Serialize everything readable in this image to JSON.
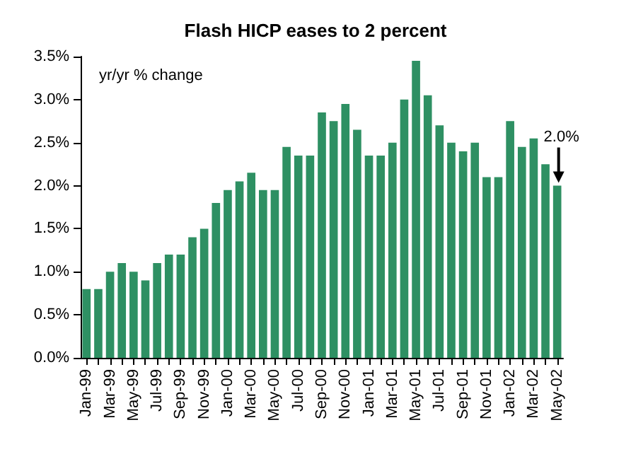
{
  "chart_data": {
    "type": "bar",
    "title": "Flash HICP eases to 2 percent",
    "ylabel": "yr/yr % change",
    "categories": [
      "Jan-99",
      null,
      "Mar-99",
      null,
      "May-99",
      null,
      "Jul-99",
      null,
      "Sep-99",
      null,
      "Nov-99",
      null,
      "Jan-00",
      null,
      "Mar-00",
      null,
      "May-00",
      null,
      "Jul-00",
      null,
      "Sep-00",
      null,
      "Nov-00",
      null,
      "Jan-01",
      null,
      "Mar-01",
      null,
      "May-01",
      null,
      "Jul-01",
      null,
      "Sep-01",
      null,
      "Nov-01",
      null,
      "Jan-02",
      null,
      "Mar-02",
      null,
      "May-02"
    ],
    "values": [
      0.8,
      0.8,
      1.0,
      1.1,
      1.0,
      0.9,
      1.1,
      1.2,
      1.2,
      1.4,
      1.5,
      1.8,
      1.95,
      2.05,
      2.15,
      1.95,
      1.95,
      2.45,
      2.35,
      2.35,
      2.85,
      2.75,
      2.95,
      2.65,
      2.35,
      2.35,
      2.5,
      3.0,
      3.45,
      3.05,
      2.7,
      2.5,
      2.4,
      2.5,
      2.1,
      2.1,
      2.75,
      2.45,
      2.55,
      2.25,
      2.0
    ],
    "color": "#2e9063",
    "ylim": [
      0,
      3.5
    ],
    "yticks": [
      {
        "value": 0,
        "label": "0.0%"
      },
      {
        "value": 0.5,
        "label": "0.5%"
      },
      {
        "value": 1,
        "label": "1.0%"
      },
      {
        "value": 1.5,
        "label": "1.5%"
      },
      {
        "value": 2,
        "label": "2.0%"
      },
      {
        "value": 2.5,
        "label": "2.5%"
      },
      {
        "value": 3,
        "label": "3.0%"
      },
      {
        "value": 3.5,
        "label": "3.5%"
      }
    ],
    "annotations": [
      {
        "text": "2.0%",
        "x": "May-02",
        "y": 2.0
      }
    ]
  }
}
